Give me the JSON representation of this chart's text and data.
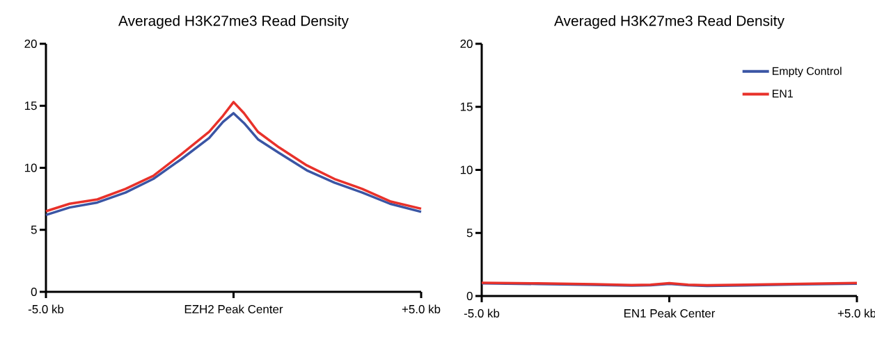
{
  "chart_data": [
    {
      "type": "line",
      "title": "Averaged H3K27me3 Read Density",
      "xlim": [
        -5,
        5
      ],
      "ylim": [
        0,
        20
      ],
      "xticks": [
        {
          "value": -5,
          "label": "-5.0 kb"
        },
        {
          "value": 0,
          "label": "EZH2 Peak Center"
        },
        {
          "value": 5,
          "label": "+5.0 kb"
        }
      ],
      "yticks": [
        0,
        5,
        10,
        15,
        20
      ],
      "grid": false,
      "legend": false,
      "marker": "none",
      "line_style": "solid",
      "x": [
        -5,
        -4.37,
        -3.63,
        -2.88,
        -2.14,
        -1.39,
        -0.65,
        -0.28,
        0,
        0.28,
        0.65,
        1.21,
        1.95,
        2.69,
        3.43,
        4.17,
        5
      ],
      "series": [
        {
          "color": "#3a55a4",
          "values": [
            6.2,
            6.8,
            7.2,
            8.0,
            9.1,
            10.7,
            12.4,
            13.7,
            14.4,
            13.6,
            12.3,
            11.2,
            9.8,
            8.8,
            8.0,
            7.1,
            6.45
          ]
        },
        {
          "color": "#e8312a",
          "values": [
            6.5,
            7.1,
            7.45,
            8.3,
            9.35,
            11.1,
            12.9,
            14.2,
            15.3,
            14.4,
            12.9,
            11.65,
            10.2,
            9.1,
            8.3,
            7.3,
            6.7
          ]
        }
      ]
    },
    {
      "type": "line",
      "title": "Averaged H3K27me3 Read Density",
      "xlim": [
        -5,
        5
      ],
      "ylim": [
        0,
        20
      ],
      "xticks": [
        {
          "value": -5,
          "label": "-5.0 kb"
        },
        {
          "value": 0,
          "label": "EN1 Peak Center"
        },
        {
          "value": 5,
          "label": "+5.0 kb"
        }
      ],
      "yticks": [
        0,
        5,
        10,
        15,
        20
      ],
      "grid": false,
      "legend": "top right",
      "marker": "none",
      "line_style": "solid",
      "x": [
        -5,
        -3.5,
        -2,
        -1,
        -0.5,
        0,
        0.5,
        1,
        2,
        3.5,
        5
      ],
      "series": [
        {
          "name": "Empty Control",
          "color": "#3a55a4",
          "values": [
            1.0,
            0.95,
            0.88,
            0.82,
            0.85,
            0.97,
            0.85,
            0.8,
            0.84,
            0.92,
            0.98
          ]
        },
        {
          "name": "EN1",
          "color": "#e8312a",
          "values": [
            1.05,
            1.0,
            0.93,
            0.87,
            0.9,
            1.02,
            0.9,
            0.85,
            0.89,
            0.97,
            1.03
          ]
        }
      ]
    }
  ]
}
